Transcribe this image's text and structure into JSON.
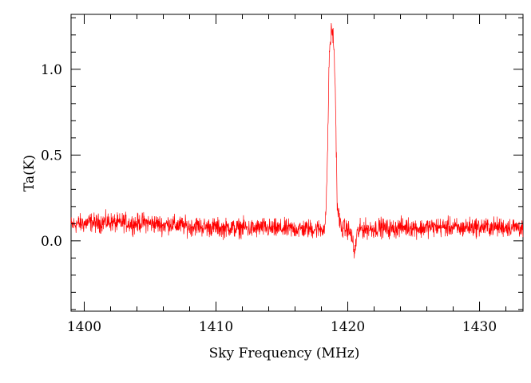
{
  "chart_data": {
    "type": "line",
    "title": "",
    "xlabel": "Sky Frequency (MHz)",
    "ylabel": "Ta(K)",
    "xlim": [
      1399.0,
      1433.3
    ],
    "ylim": [
      -0.41,
      1.32
    ],
    "x_ticks": [
      1400,
      1410,
      1420,
      1430
    ],
    "x_tick_labels": [
      "1400",
      "1410",
      "1420",
      "1430"
    ],
    "x_minor_step": 2,
    "y_ticks": [
      0.0,
      0.5,
      1.0
    ],
    "y_tick_labels": [
      "0.0",
      "0.5",
      "1.0"
    ],
    "y_minor_step": 0.1,
    "grid": false,
    "legend": "none",
    "series_color": "#ff0000",
    "series": [
      {
        "x": [
          1399.0,
          1399.5,
          1400.0,
          1400.5,
          1401.0,
          1401.5,
          1402.0,
          1402.5,
          1403.0,
          1403.5,
          1404.0,
          1404.5,
          1405.0,
          1405.5,
          1406.0,
          1406.5,
          1407.0,
          1407.5,
          1408.0,
          1408.5,
          1409.0,
          1409.5,
          1410.0,
          1410.5,
          1411.0,
          1411.5,
          1412.0,
          1412.5,
          1413.0,
          1413.5,
          1414.0,
          1414.5,
          1415.0,
          1415.5,
          1416.0,
          1416.5,
          1417.0,
          1417.5,
          1418.0,
          1418.3,
          1418.45,
          1418.6,
          1418.75,
          1418.9,
          1419.05,
          1419.2,
          1419.5,
          1420.0,
          1420.3,
          1420.5,
          1420.7,
          1421.0,
          1421.5,
          1422.0,
          1422.5,
          1423.0,
          1423.5,
          1424.0,
          1424.5,
          1425.0,
          1425.5,
          1426.0,
          1426.5,
          1427.0,
          1427.5,
          1428.0,
          1428.5,
          1429.0,
          1429.5,
          1430.0,
          1430.5,
          1431.0,
          1431.5,
          1432.0,
          1432.5,
          1433.0,
          1433.3
        ],
        "y": [
          0.09,
          0.1,
          0.1,
          0.11,
          0.1,
          0.11,
          0.11,
          0.1,
          0.11,
          0.1,
          0.1,
          0.11,
          0.1,
          0.1,
          0.09,
          0.1,
          0.09,
          0.09,
          0.08,
          0.09,
          0.08,
          0.08,
          0.08,
          0.07,
          0.08,
          0.07,
          0.08,
          0.07,
          0.07,
          0.08,
          0.07,
          0.07,
          0.07,
          0.07,
          0.07,
          0.07,
          0.07,
          0.07,
          0.07,
          0.08,
          0.45,
          1.1,
          1.22,
          1.2,
          0.9,
          0.2,
          0.07,
          0.07,
          0.03,
          -0.08,
          0.04,
          0.07,
          0.07,
          0.07,
          0.08,
          0.07,
          0.07,
          0.08,
          0.08,
          0.08,
          0.07,
          0.08,
          0.08,
          0.08,
          0.08,
          0.08,
          0.07,
          0.08,
          0.08,
          0.08,
          0.08,
          0.08,
          0.08,
          0.08,
          0.08,
          0.08,
          0.07
        ]
      }
    ]
  }
}
